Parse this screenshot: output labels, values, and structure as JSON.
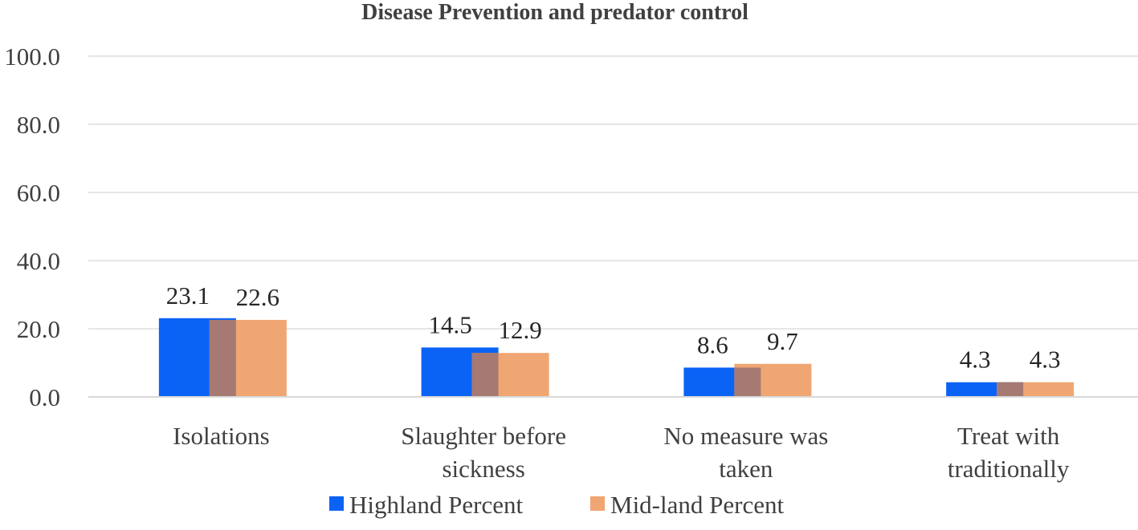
{
  "chart_data": {
    "type": "bar",
    "title": "Disease Prevention and predator control",
    "categories": [
      [
        "Isolations"
      ],
      [
        "Slaughter before",
        "sickness"
      ],
      [
        "No measure was",
        "taken"
      ],
      [
        "Treat with",
        "traditionally"
      ]
    ],
    "series": [
      {
        "name": "Highland Percent",
        "values": [
          23.1,
          14.5,
          8.6,
          4.3
        ],
        "value_labels": [
          "23.1",
          "14.5",
          "8.6",
          "4.3"
        ],
        "color": "#0b63f6"
      },
      {
        "name": "Mid-land Percent",
        "values": [
          22.6,
          12.9,
          9.7,
          4.3
        ],
        "value_labels": [
          "22.6",
          "12.9",
          "9.7",
          "4.3"
        ],
        "color": "#f0a673"
      }
    ],
    "overlap_color": "#a67a72",
    "ylim": [
      0,
      100
    ],
    "yticks": [
      0,
      20,
      40,
      60,
      80,
      100
    ],
    "ytick_labels": [
      "0.0",
      "20.0",
      "40.0",
      "60.0",
      "80.0",
      "100.0"
    ],
    "xlabel": "",
    "ylabel": "",
    "grid": true,
    "legend_position": "bottom"
  }
}
